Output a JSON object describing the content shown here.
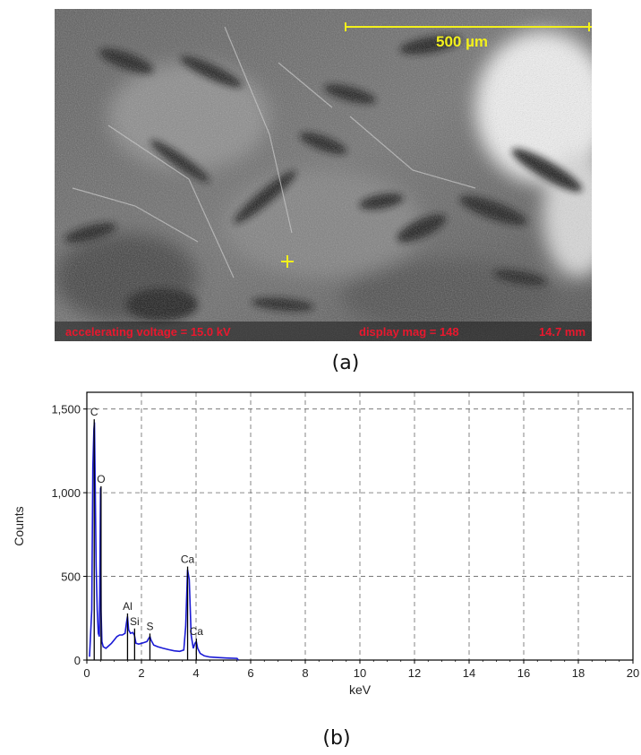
{
  "figure": {
    "panel_a": {
      "caption": "(a)",
      "scale_bar_label": "500 µm",
      "accelerating_voltage": "accelerating voltage = 15.0 kV",
      "display_mag": "display mag = 148",
      "working_distance": "14.7 mm",
      "scale_bar_color": "#f2f01c",
      "info_text_color": "#e8182e"
    },
    "panel_b": {
      "caption": "(b)"
    }
  },
  "chart_data": {
    "type": "line",
    "title": "",
    "xlabel": "keV",
    "ylabel": "Counts",
    "xlim": [
      0,
      20
    ],
    "ylim": [
      0,
      1600
    ],
    "x_ticks": [
      "0",
      "2",
      "4",
      "6",
      "8",
      "10",
      "12",
      "14",
      "16",
      "18",
      "20"
    ],
    "y_ticks": [
      "0",
      "500",
      "1,000",
      "1,500"
    ],
    "x_tick_values": [
      0,
      2,
      4,
      6,
      8,
      10,
      12,
      14,
      16,
      18,
      20
    ],
    "y_tick_values": [
      0,
      500,
      1000,
      1500
    ],
    "grid": true,
    "line_color": "#1a1ad6",
    "series": [
      {
        "x": [
          0.1,
          0.18,
          0.22,
          0.26,
          0.28,
          0.3,
          0.34,
          0.38,
          0.42,
          0.46,
          0.5,
          0.52,
          0.55,
          0.6,
          0.7,
          0.8,
          0.9,
          1.0,
          1.1,
          1.2,
          1.3,
          1.4,
          1.45,
          1.49,
          1.53,
          1.6,
          1.68,
          1.74,
          1.8,
          1.9,
          2.0,
          2.1,
          2.2,
          2.27,
          2.31,
          2.35,
          2.45,
          2.6,
          2.8,
          3.0,
          3.2,
          3.4,
          3.55,
          3.62,
          3.69,
          3.75,
          3.82,
          3.9,
          3.96,
          4.01,
          4.06,
          4.15,
          4.3,
          4.5,
          4.8,
          5.2,
          5.5,
          5.55
        ],
        "y": [
          20,
          300,
          1150,
          1380,
          1420,
          1100,
          560,
          300,
          160,
          140,
          1030,
          300,
          110,
          80,
          70,
          85,
          100,
          120,
          140,
          150,
          150,
          160,
          220,
          260,
          180,
          160,
          165,
          150,
          100,
          95,
          100,
          105,
          110,
          130,
          140,
          120,
          90,
          80,
          70,
          62,
          55,
          52,
          60,
          200,
          540,
          480,
          150,
          70,
          100,
          110,
          70,
          40,
          25,
          18,
          15,
          12,
          10,
          0
        ]
      }
    ],
    "peak_labels": [
      {
        "text": "C",
        "x": 0.27,
        "y": 1460
      },
      {
        "text": "O",
        "x": 0.52,
        "y": 1060
      },
      {
        "text": "Al",
        "x": 1.49,
        "y": 300
      },
      {
        "text": "Si",
        "x": 1.75,
        "y": 210
      },
      {
        "text": "S",
        "x": 2.31,
        "y": 180
      },
      {
        "text": "Ca",
        "x": 3.69,
        "y": 580
      },
      {
        "text": "Ca",
        "x": 4.01,
        "y": 150
      }
    ]
  }
}
